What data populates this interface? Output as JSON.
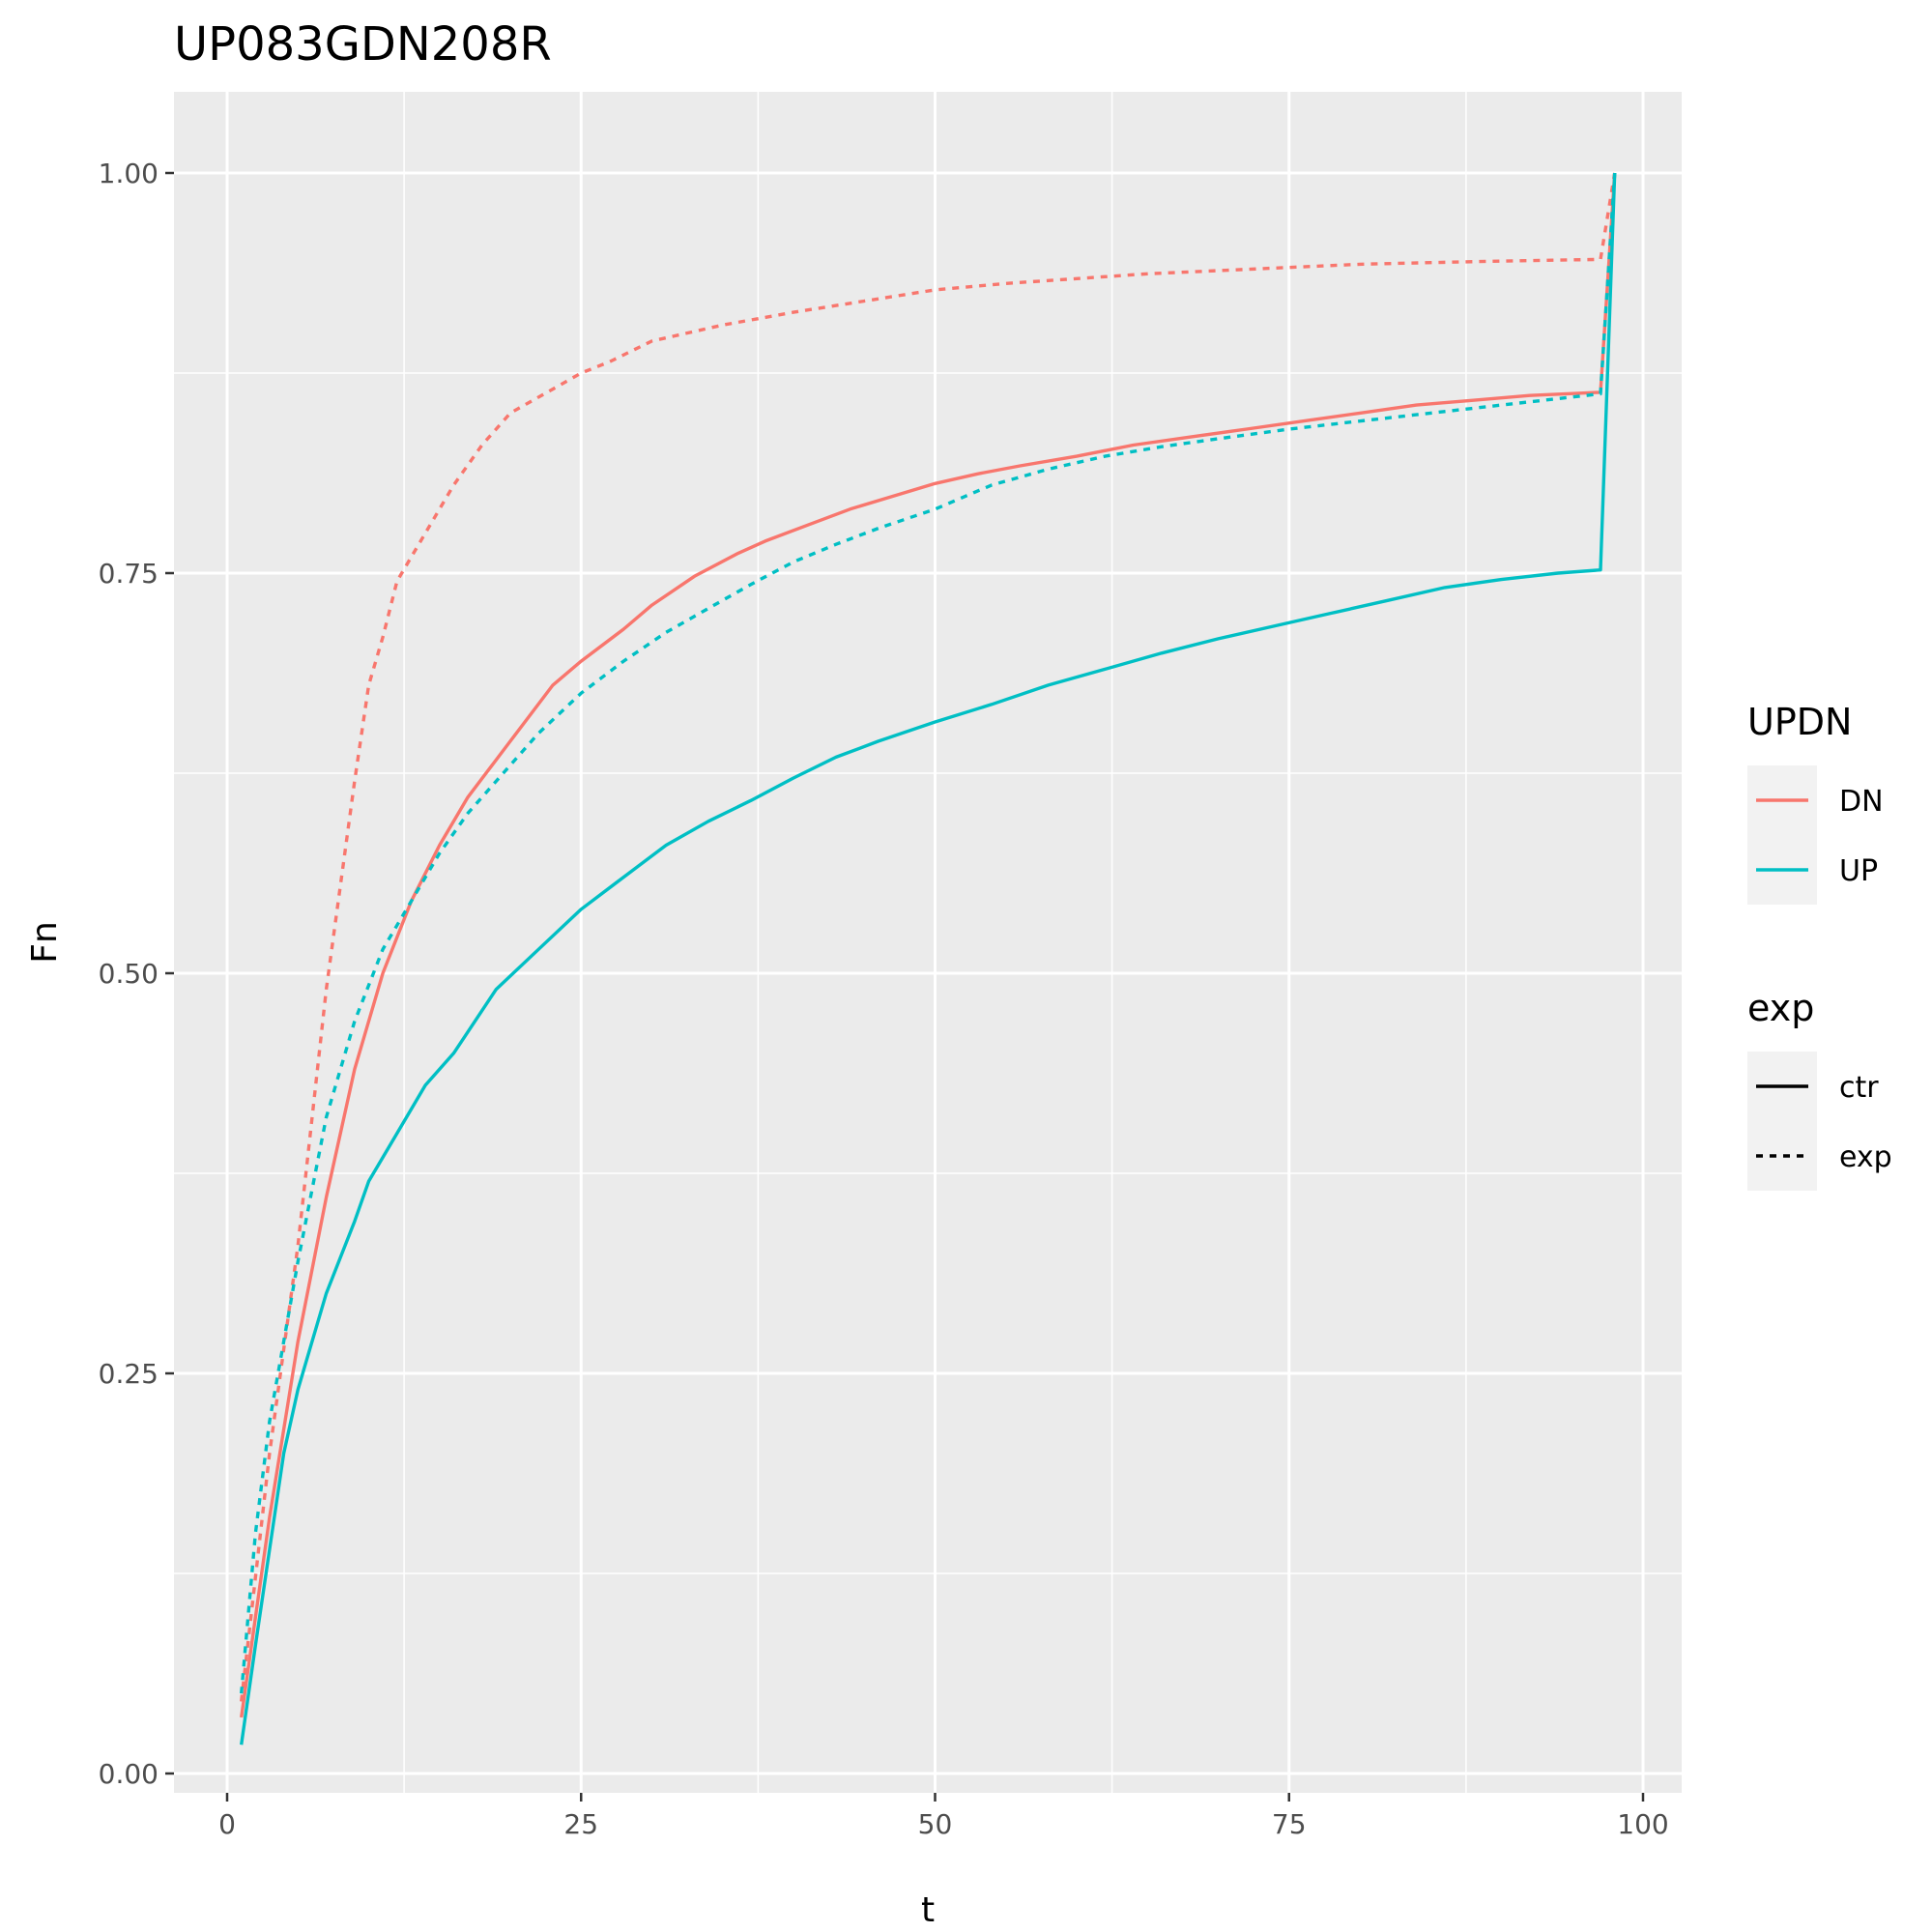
{
  "chart_data": {
    "type": "line",
    "title": "UP083GDN208R",
    "xlabel": "t",
    "ylabel": "Fn",
    "xlim": [
      -2,
      103
    ],
    "ylim": [
      -0.03,
      1.05
    ],
    "x_ticks": [
      0,
      25,
      50,
      75,
      100
    ],
    "x_tick_labels": [
      "0",
      "25",
      "50",
      "75",
      "100"
    ],
    "y_ticks": [
      0,
      0.25,
      0.5,
      0.75,
      1
    ],
    "y_tick_labels": [
      "0.00",
      "0.25",
      "0.50",
      "0.75",
      "1.00"
    ],
    "grid": true,
    "legend_position": "right",
    "legends": [
      {
        "title": "UPDN",
        "kind": "color",
        "entries": [
          {
            "label": "DN",
            "color": "#F8766D"
          },
          {
            "label": "UP",
            "color": "#00BFC4"
          }
        ]
      },
      {
        "title": "exp",
        "kind": "linetype",
        "entries": [
          {
            "label": "ctr",
            "dash": "solid"
          },
          {
            "label": "exp",
            "dash": "dashed"
          }
        ]
      }
    ],
    "series": [
      {
        "updn": "DN",
        "exp": "ctr",
        "color": "#F8766D",
        "dash": "solid",
        "points": [
          [
            1,
            0.035
          ],
          [
            3,
            0.16
          ],
          [
            5,
            0.27
          ],
          [
            7,
            0.36
          ],
          [
            9,
            0.44
          ],
          [
            11,
            0.5
          ],
          [
            13,
            0.545
          ],
          [
            15,
            0.58
          ],
          [
            17,
            0.61
          ],
          [
            20,
            0.645
          ],
          [
            23,
            0.68
          ],
          [
            25,
            0.695
          ],
          [
            28,
            0.715
          ],
          [
            30,
            0.73
          ],
          [
            33,
            0.748
          ],
          [
            36,
            0.762
          ],
          [
            38,
            0.77
          ],
          [
            41,
            0.78
          ],
          [
            44,
            0.79
          ],
          [
            47,
            0.798
          ],
          [
            50,
            0.806
          ],
          [
            53,
            0.812
          ],
          [
            56,
            0.817
          ],
          [
            60,
            0.823
          ],
          [
            64,
            0.83
          ],
          [
            68,
            0.835
          ],
          [
            72,
            0.84
          ],
          [
            76,
            0.845
          ],
          [
            80,
            0.85
          ],
          [
            84,
            0.855
          ],
          [
            88,
            0.858
          ],
          [
            92,
            0.861
          ],
          [
            97,
            0.863
          ],
          [
            98,
            1.0
          ]
        ]
      },
      {
        "updn": "DN",
        "exp": "exp",
        "color": "#F8766D",
        "dash": "dashed",
        "points": [
          [
            1,
            0.045
          ],
          [
            3,
            0.2
          ],
          [
            5,
            0.33
          ],
          [
            7,
            0.49
          ],
          [
            9,
            0.62
          ],
          [
            10,
            0.68
          ],
          [
            11,
            0.71
          ],
          [
            12,
            0.745
          ],
          [
            14,
            0.775
          ],
          [
            16,
            0.805
          ],
          [
            18,
            0.83
          ],
          [
            20,
            0.85
          ],
          [
            23,
            0.865
          ],
          [
            25,
            0.875
          ],
          [
            27,
            0.882
          ],
          [
            30,
            0.895
          ],
          [
            35,
            0.905
          ],
          [
            40,
            0.913
          ],
          [
            45,
            0.92
          ],
          [
            50,
            0.927
          ],
          [
            55,
            0.931
          ],
          [
            60,
            0.934
          ],
          [
            65,
            0.937
          ],
          [
            70,
            0.939
          ],
          [
            75,
            0.941
          ],
          [
            80,
            0.943
          ],
          [
            85,
            0.944
          ],
          [
            90,
            0.945
          ],
          [
            97,
            0.946
          ],
          [
            98,
            1.0
          ]
        ]
      },
      {
        "updn": "UP",
        "exp": "ctr",
        "color": "#00BFC4",
        "dash": "solid",
        "points": [
          [
            1,
            0.018
          ],
          [
            2,
            0.08
          ],
          [
            3,
            0.14
          ],
          [
            4,
            0.2
          ],
          [
            5,
            0.24
          ],
          [
            7,
            0.3
          ],
          [
            9,
            0.345
          ],
          [
            10,
            0.37
          ],
          [
            12,
            0.4
          ],
          [
            14,
            0.43
          ],
          [
            16,
            0.45
          ],
          [
            19,
            0.49
          ],
          [
            22,
            0.515
          ],
          [
            25,
            0.54
          ],
          [
            28,
            0.56
          ],
          [
            31,
            0.58
          ],
          [
            34,
            0.595
          ],
          [
            37,
            0.608
          ],
          [
            40,
            0.622
          ],
          [
            43,
            0.635
          ],
          [
            46,
            0.645
          ],
          [
            50,
            0.657
          ],
          [
            54,
            0.668
          ],
          [
            58,
            0.68
          ],
          [
            62,
            0.69
          ],
          [
            66,
            0.7
          ],
          [
            70,
            0.709
          ],
          [
            74,
            0.717
          ],
          [
            78,
            0.725
          ],
          [
            82,
            0.733
          ],
          [
            86,
            0.741
          ],
          [
            90,
            0.746
          ],
          [
            94,
            0.75
          ],
          [
            97,
            0.752
          ],
          [
            98,
            1.0
          ]
        ]
      },
      {
        "updn": "UP",
        "exp": "exp",
        "color": "#00BFC4",
        "dash": "dashed",
        "points": [
          [
            1,
            0.05
          ],
          [
            2,
            0.15
          ],
          [
            3,
            0.22
          ],
          [
            5,
            0.32
          ],
          [
            7,
            0.41
          ],
          [
            9,
            0.47
          ],
          [
            11,
            0.515
          ],
          [
            13,
            0.545
          ],
          [
            15,
            0.575
          ],
          [
            17,
            0.6
          ],
          [
            20,
            0.63
          ],
          [
            22,
            0.65
          ],
          [
            25,
            0.675
          ],
          [
            28,
            0.695
          ],
          [
            31,
            0.713
          ],
          [
            34,
            0.728
          ],
          [
            37,
            0.743
          ],
          [
            40,
            0.757
          ],
          [
            43,
            0.768
          ],
          [
            46,
            0.778
          ],
          [
            50,
            0.79
          ],
          [
            54,
            0.805
          ],
          [
            58,
            0.815
          ],
          [
            62,
            0.823
          ],
          [
            66,
            0.829
          ],
          [
            70,
            0.834
          ],
          [
            75,
            0.84
          ],
          [
            80,
            0.845
          ],
          [
            85,
            0.85
          ],
          [
            90,
            0.855
          ],
          [
            97,
            0.862
          ],
          [
            98,
            1.0
          ]
        ]
      }
    ]
  }
}
